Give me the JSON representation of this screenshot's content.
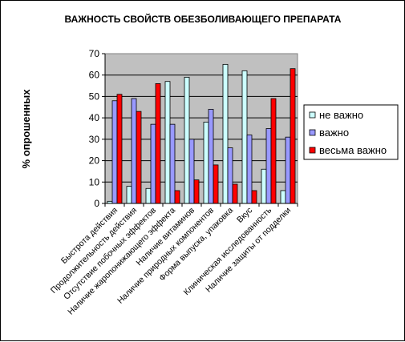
{
  "chart_data": {
    "type": "bar",
    "title": "ВАЖНОСТЬ СВОЙСТВ ОБЕЗБОЛИВАЮЩЕГО ПРЕПАРАТА",
    "xlabel": "",
    "ylabel": "% опрошенных",
    "ylim": [
      0,
      70
    ],
    "yticks": [
      0,
      10,
      20,
      30,
      40,
      50,
      60,
      70
    ],
    "grid": true,
    "legend_position": "right",
    "categories": [
      "Быстрота действия",
      "Продолжительность действия",
      "Отсутствие побочных эффектов",
      "Наличие жаропонижающего эффекта",
      "Наличие витаминов",
      "Наличие природных компонентов",
      "Форма выпуска, упаковка",
      "Вкус",
      "Клиническая исследованность",
      "Наличие защиты от подделки"
    ],
    "series": [
      {
        "name": "не важно",
        "color": "#ccffff",
        "values": [
          1,
          8,
          7,
          57,
          59,
          38,
          65,
          62,
          16,
          6
        ]
      },
      {
        "name": "важно",
        "color": "#9999ff",
        "values": [
          48,
          49,
          37,
          37,
          30,
          44,
          26,
          32,
          35,
          31
        ]
      },
      {
        "name": "весьма важно",
        "color": "#ff0000",
        "values": [
          51,
          43,
          56,
          6,
          11,
          18,
          9,
          6,
          49,
          63
        ]
      }
    ]
  }
}
